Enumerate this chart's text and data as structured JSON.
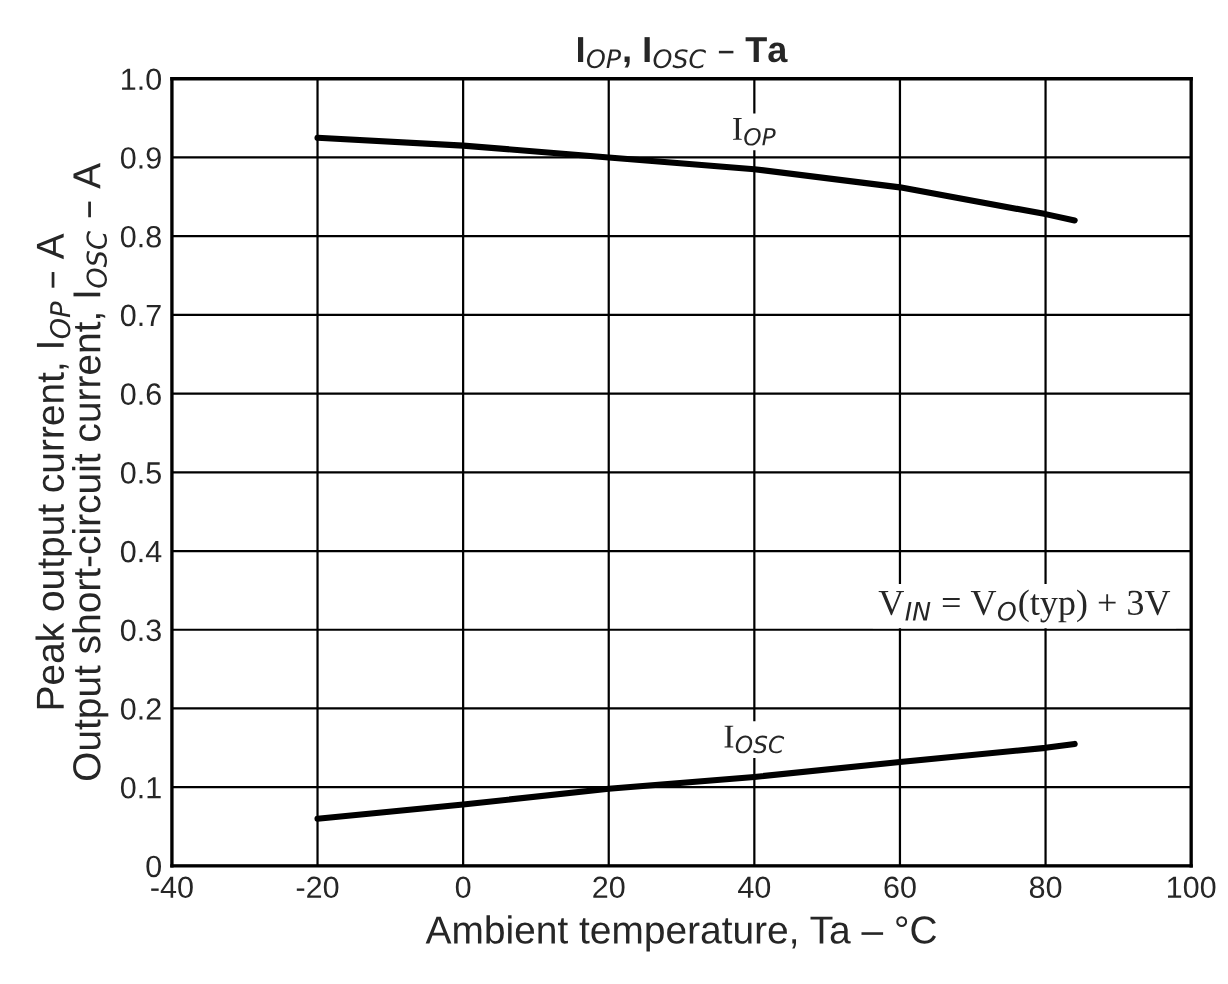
{
  "chart_data": {
    "type": "line",
    "title": "I$_{OP}$, I$_{OSC}$ – Ta",
    "xlabel": "Ambient temperature, Ta – °C",
    "ylabel": "Peak output current, I$_{OP}$ – A\nOutput short-circuit current, I$_{OSC}$ – A",
    "series": [
      {
        "name": "I$_{OP}$",
        "color": "#000000",
        "x": [
          -20,
          0,
          20,
          40,
          60,
          80,
          84
        ],
        "values": [
          0.925,
          0.915,
          0.9,
          0.885,
          0.862,
          0.828,
          0.82
        ]
      },
      {
        "name": "I$_{OSC}$",
        "color": "#000000",
        "x": [
          -20,
          0,
          20,
          40,
          60,
          80,
          84
        ],
        "values": [
          0.06,
          0.078,
          0.098,
          0.113,
          0.132,
          0.15,
          0.155
        ]
      }
    ],
    "annotations": [
      "V$_{IN}$ = V$_{O}$(typ) + 3V"
    ],
    "xlim": [
      -40,
      100
    ],
    "xticks": [
      -40,
      -20,
      0,
      20,
      40,
      60,
      80,
      100
    ],
    "ylim": [
      0,
      1
    ],
    "yticks": [
      0,
      {
        "value": 0.1,
        "label": "0.1"
      },
      {
        "value": 0.2,
        "label": "0.2"
      },
      {
        "value": 0.3,
        "label": "0.3"
      },
      {
        "value": 0.4,
        "label": "0.4"
      },
      {
        "value": 0.5,
        "label": "0.5"
      },
      {
        "value": 0.6,
        "label": "0.6"
      },
      {
        "value": 0.7,
        "label": "0.7"
      },
      {
        "value": 0.8,
        "label": "0.8"
      },
      {
        "value": 0.9,
        "label": "0.9"
      },
      {
        "value": 1,
        "label": "1.0"
      }
    ],
    "grid": true,
    "legend": false,
    "marker": "none",
    "line_style": "solid"
  }
}
